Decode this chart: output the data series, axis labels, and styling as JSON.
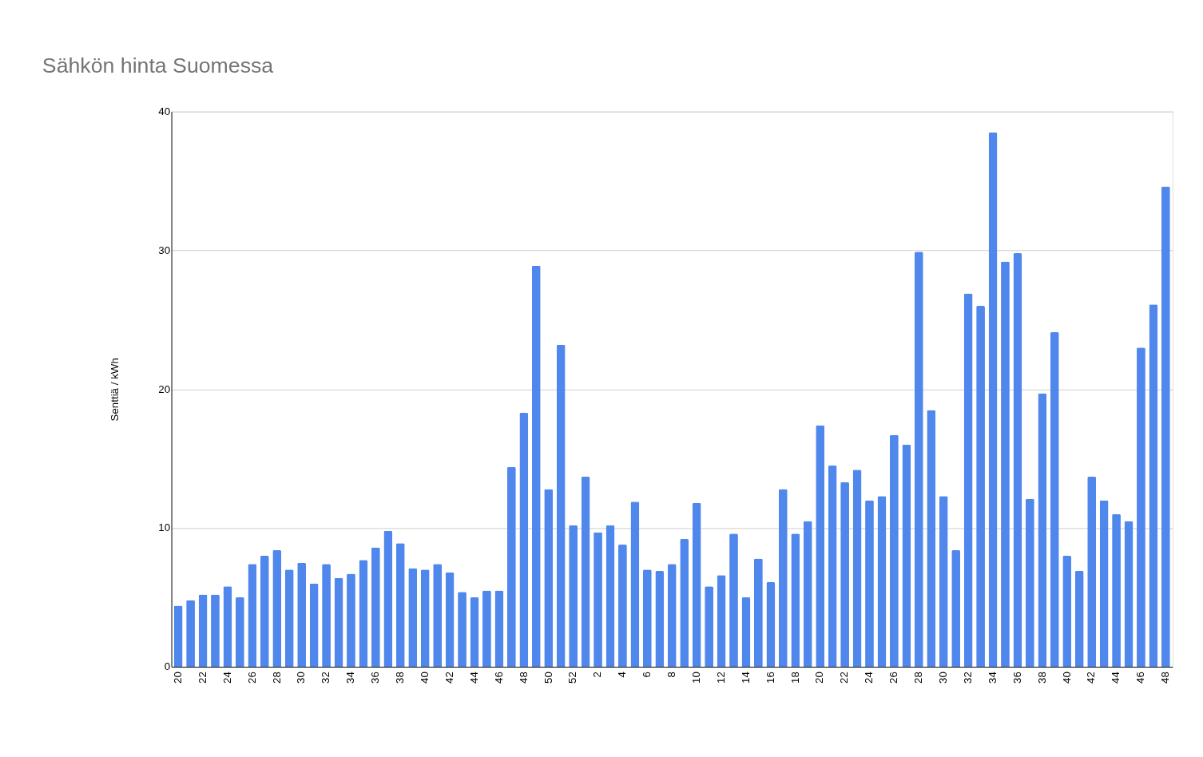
{
  "chart_data": {
    "type": "bar",
    "title": "Sähkön hinta Suomessa",
    "ylabel": "Senttiä / kWh",
    "categories": [
      "20",
      null,
      "22",
      null,
      "24",
      null,
      "26",
      null,
      "28",
      null,
      "30",
      null,
      "32",
      null,
      "34",
      null,
      "36",
      null,
      "38",
      null,
      "40",
      null,
      "42",
      null,
      "44",
      null,
      "46",
      null,
      "48",
      null,
      "50",
      null,
      "52",
      null,
      "2",
      null,
      "4",
      null,
      "6",
      null,
      "8",
      null,
      "10",
      null,
      "12",
      null,
      "14",
      null,
      "16",
      null,
      "18",
      null,
      "20",
      null,
      "22",
      null,
      "24",
      null,
      "26",
      null,
      "28",
      null,
      "30",
      null,
      "32",
      null,
      "34",
      null,
      "36",
      null,
      "38",
      null,
      "40",
      null,
      "42",
      null,
      "44",
      null,
      "46",
      null,
      "48"
    ],
    "values": [
      4.4,
      4.8,
      5.2,
      5.2,
      5.8,
      5.0,
      7.4,
      8.0,
      8.4,
      7.0,
      7.5,
      6.0,
      7.4,
      6.4,
      6.7,
      7.7,
      8.6,
      9.8,
      8.9,
      7.1,
      7.0,
      7.4,
      6.8,
      5.4,
      5.0,
      5.5,
      5.5,
      14.4,
      18.3,
      28.9,
      12.8,
      23.2,
      10.2,
      13.7,
      9.7,
      10.2,
      8.8,
      11.9,
      7.0,
      6.9,
      7.4,
      9.2,
      11.8,
      5.8,
      6.6,
      9.6,
      5.0,
      7.8,
      6.1,
      12.8,
      9.6,
      10.5,
      17.4,
      14.5,
      13.3,
      14.2,
      12.0,
      12.3,
      16.7,
      16.0,
      29.9,
      18.5,
      12.3,
      8.4,
      26.9,
      26.0,
      38.5,
      29.2,
      29.8,
      12.1,
      19.7,
      24.1,
      8.0,
      6.9,
      13.7,
      12.0,
      11.0,
      10.5,
      23.0,
      26.1,
      34.6
    ],
    "color": "#5087ec",
    "ylim": [
      0,
      40
    ],
    "yticks": [
      0,
      10,
      20,
      30,
      40
    ],
    "grid": "y"
  }
}
